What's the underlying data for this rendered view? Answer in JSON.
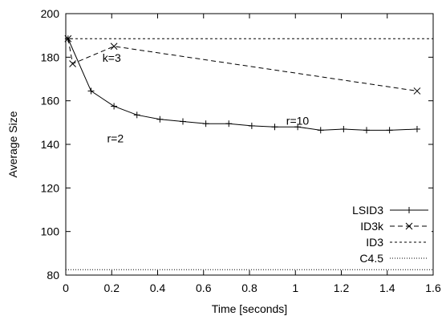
{
  "chart_data": {
    "type": "line",
    "title": "",
    "xlabel": "Time [seconds]",
    "ylabel": "Average Size",
    "xlim": [
      0,
      1.6
    ],
    "ylim": [
      80,
      200
    ],
    "xticks": [
      "0",
      "0.2",
      "0.4",
      "0.6",
      "0.8",
      "1",
      "1.2",
      "1.4",
      "1.6"
    ],
    "yticks": [
      "80",
      "100",
      "120",
      "140",
      "160",
      "180",
      "200"
    ],
    "grid": false,
    "legend_position": "bottom-right",
    "series": [
      {
        "name": "LSID3",
        "style": "solid",
        "marker": "plus",
        "x": [
          0.01,
          0.11,
          0.21,
          0.31,
          0.41,
          0.51,
          0.61,
          0.71,
          0.81,
          0.91,
          1.01,
          1.11,
          1.21,
          1.31,
          1.41,
          1.53
        ],
        "y": [
          188.5,
          164.5,
          157.5,
          153.5,
          151.5,
          150.5,
          149.5,
          149.5,
          148.5,
          148,
          148,
          146.5,
          147,
          146.5,
          146.5,
          147
        ]
      },
      {
        "name": "ID3k",
        "style": "dashed",
        "marker": "cross",
        "x": [
          0.01,
          0.03,
          0.21,
          1.53
        ],
        "y": [
          188.5,
          177,
          185,
          164.5
        ]
      },
      {
        "name": "ID3",
        "style": "dashed-fine",
        "marker": "none",
        "x": [
          0,
          1.6
        ],
        "y": [
          188.5,
          188.5
        ]
      },
      {
        "name": "C4.5",
        "style": "dotted",
        "marker": "none",
        "x": [
          0,
          1.6
        ],
        "y": [
          82.5,
          82.5
        ]
      }
    ],
    "annotations": [
      {
        "text": "k=3",
        "x": 0.16,
        "y": 178
      },
      {
        "text": "r=2",
        "x": 0.18,
        "y": 141
      },
      {
        "text": "r=10",
        "x": 0.96,
        "y": 149
      }
    ]
  }
}
